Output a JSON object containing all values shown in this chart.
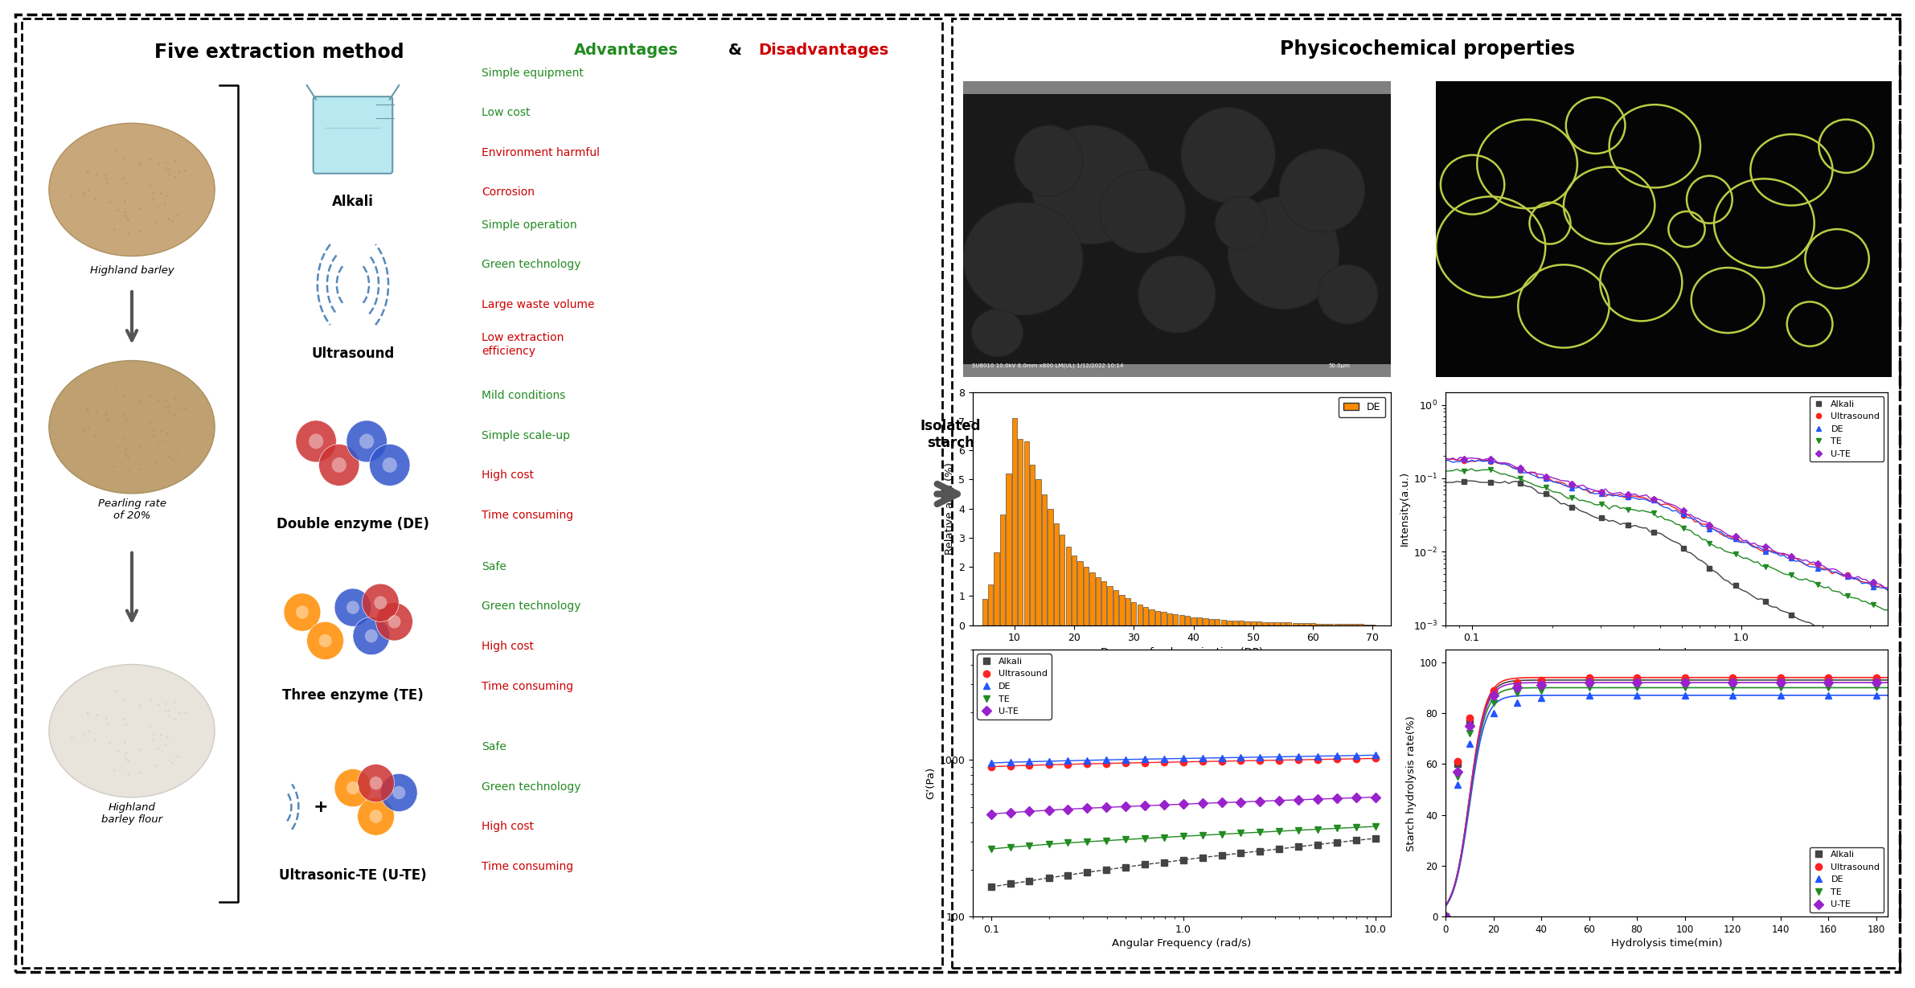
{
  "title_left": "Five extraction method",
  "title_adv": "Advantages",
  "title_dis": "Disadvantages",
  "title_right": "Physicochemical properties",
  "methods": [
    "Alkali",
    "Ultrasound",
    "Double enzyme (DE)",
    "Three enzyme (TE)",
    "Ultrasonic-TE (U-TE)"
  ],
  "left_labels": [
    "Highland barley",
    "Pearling rate\nof 20%",
    "Highland\nbarley flour"
  ],
  "advantages": [
    [
      "Simple equipment",
      "Low cost"
    ],
    [
      "Simple operation",
      "Green technology"
    ],
    [
      "Mild conditions",
      "Simple scale-up"
    ],
    [
      "Safe",
      "Green technology"
    ],
    [
      "Safe",
      "Green technology"
    ]
  ],
  "disadvantages": [
    [
      "Environment harmful",
      "Corrosion"
    ],
    [
      "Large waste volume",
      "Low extraction\nefficiency"
    ],
    [
      "High cost",
      "Time consuming"
    ],
    [
      "High cost",
      "Time consuming"
    ],
    [
      "High cost",
      "Time consuming"
    ]
  ],
  "adv_color": "#228B22",
  "dis_color": "#CC0000",
  "isolated_starch_label": "Isolated\nstarch",
  "bar_color": "#FF8C00",
  "bar_edge_color": "#333333",
  "bar_x": [
    5,
    6,
    7,
    8,
    9,
    10,
    11,
    12,
    13,
    14,
    15,
    16,
    17,
    18,
    19,
    20,
    21,
    22,
    23,
    24,
    25,
    26,
    27,
    28,
    29,
    30,
    31,
    32,
    33,
    34,
    35,
    36,
    37,
    38,
    39,
    40,
    41,
    42,
    43,
    44,
    45,
    46,
    47,
    48,
    49,
    50,
    51,
    52,
    53,
    54,
    55,
    56,
    57,
    58,
    59,
    60,
    61,
    62,
    63,
    64,
    65,
    66,
    67,
    68,
    69,
    70
  ],
  "bar_heights": [
    0.9,
    1.4,
    2.5,
    3.8,
    5.2,
    7.1,
    6.4,
    6.3,
    5.5,
    5.0,
    4.5,
    4.0,
    3.5,
    3.1,
    2.7,
    2.4,
    2.2,
    2.0,
    1.8,
    1.65,
    1.5,
    1.35,
    1.2,
    1.05,
    0.92,
    0.8,
    0.7,
    0.62,
    0.55,
    0.5,
    0.45,
    0.41,
    0.37,
    0.34,
    0.31,
    0.28,
    0.26,
    0.24,
    0.22,
    0.2,
    0.19,
    0.17,
    0.16,
    0.15,
    0.14,
    0.13,
    0.12,
    0.11,
    0.1,
    0.1,
    0.09,
    0.09,
    0.08,
    0.08,
    0.07,
    0.07,
    0.06,
    0.06,
    0.05,
    0.05,
    0.05,
    0.04,
    0.04,
    0.04,
    0.03,
    0.03
  ],
  "dp_xlabel": "Degree of polymerisation (DP)",
  "dp_ylabel": "Relative area (%)",
  "dp_legend": "DE",
  "gp_xlabel": "Angular Frequency (rad/s)",
  "gp_ylabel": "G’(Pa)",
  "saxs_xlabel": "q /nm⁻¹",
  "saxs_ylabel": "Intensity(a.u.)",
  "hyd_xlabel": "Hydrolysis time(min)",
  "hyd_ylabel": "Starch hydrolysis rate(%)",
  "hyd_xvals": [
    0,
    5,
    10,
    20,
    30,
    40,
    60,
    80,
    100,
    120,
    140,
    160,
    180
  ],
  "series_names": [
    "Alkali",
    "Ultrasound",
    "DE",
    "TE",
    "U-TE"
  ],
  "series_colors": [
    "#444444",
    "#FF2222",
    "#2255FF",
    "#228B22",
    "#9922CC"
  ],
  "series_markers": [
    "s",
    "o",
    "^",
    "v",
    "D"
  ],
  "series_ls_gp": [
    "--",
    "-",
    "-",
    "-",
    "-"
  ],
  "gp_xvals": [
    0.1,
    0.126,
    0.158,
    0.2,
    0.251,
    0.316,
    0.398,
    0.501,
    0.631,
    0.794,
    1.0,
    1.259,
    1.585,
    1.995,
    2.512,
    3.162,
    3.981,
    5.012,
    6.31,
    7.943,
    10.0
  ],
  "gp_values": [
    [
      155,
      162,
      169,
      177,
      184,
      192,
      199,
      207,
      215,
      222,
      230,
      238,
      246,
      254,
      262,
      270,
      279,
      288,
      297,
      306,
      315
    ],
    [
      900,
      910,
      918,
      925,
      932,
      938,
      944,
      950,
      955,
      960,
      965,
      970,
      975,
      980,
      985,
      990,
      995,
      1000,
      1005,
      1010,
      1015
    ],
    [
      950,
      960,
      968,
      975,
      982,
      988,
      994,
      1000,
      1005,
      1010,
      1015,
      1020,
      1025,
      1030,
      1035,
      1040,
      1045,
      1050,
      1055,
      1060,
      1065
    ],
    [
      270,
      277,
      283,
      289,
      295,
      300,
      305,
      310,
      315,
      320,
      325,
      330,
      335,
      340,
      345,
      350,
      355,
      360,
      365,
      370,
      375
    ],
    [
      450,
      460,
      468,
      476,
      483,
      490,
      496,
      502,
      508,
      514,
      520,
      526,
      532,
      537,
      543,
      549,
      554,
      560,
      565,
      571,
      576
    ]
  ],
  "hyd_values": [
    [
      0,
      60,
      77,
      88,
      91,
      92,
      93,
      93,
      93,
      93,
      93,
      93,
      93
    ],
    [
      0,
      61,
      78,
      89,
      92,
      93,
      94,
      94,
      94,
      94,
      94,
      94,
      94
    ],
    [
      0,
      52,
      68,
      80,
      84,
      86,
      87,
      87,
      87,
      87,
      87,
      87,
      87
    ],
    [
      0,
      55,
      72,
      84,
      88,
      89,
      90,
      90,
      90,
      90,
      90,
      90,
      90
    ],
    [
      0,
      57,
      75,
      87,
      90,
      91,
      92,
      92,
      92,
      92,
      92,
      92,
      92
    ]
  ],
  "bg_color": "#FFFFFF"
}
